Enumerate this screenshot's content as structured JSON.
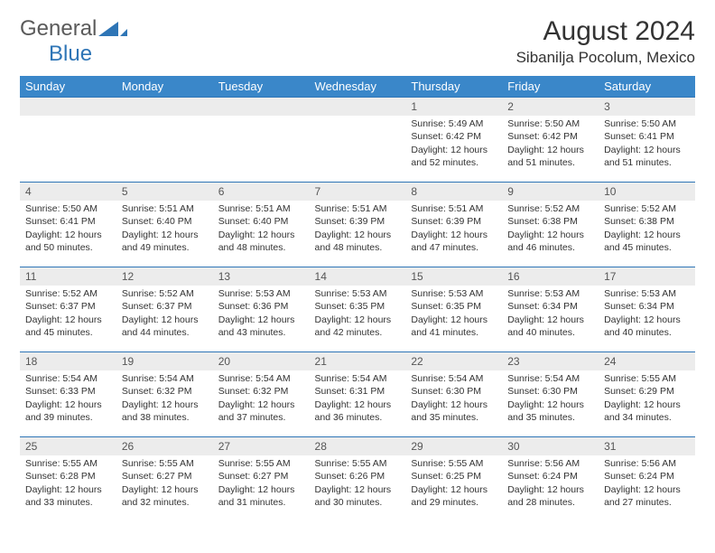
{
  "brand": {
    "part1": "General",
    "part2": "Blue"
  },
  "title": "August 2024",
  "location": "Sibanilja Pocolum, Mexico",
  "headerColor": "#3a87c9",
  "ruleColor": "#2e75b6",
  "dayHeaderBg": "#ececec",
  "weekdays": [
    "Sunday",
    "Monday",
    "Tuesday",
    "Wednesday",
    "Thursday",
    "Friday",
    "Saturday"
  ],
  "weeks": [
    [
      null,
      null,
      null,
      null,
      {
        "n": "1",
        "sr": "5:49 AM",
        "ss": "6:42 PM",
        "dl": "12 hours and 52 minutes."
      },
      {
        "n": "2",
        "sr": "5:50 AM",
        "ss": "6:42 PM",
        "dl": "12 hours and 51 minutes."
      },
      {
        "n": "3",
        "sr": "5:50 AM",
        "ss": "6:41 PM",
        "dl": "12 hours and 51 minutes."
      }
    ],
    [
      {
        "n": "4",
        "sr": "5:50 AM",
        "ss": "6:41 PM",
        "dl": "12 hours and 50 minutes."
      },
      {
        "n": "5",
        "sr": "5:51 AM",
        "ss": "6:40 PM",
        "dl": "12 hours and 49 minutes."
      },
      {
        "n": "6",
        "sr": "5:51 AM",
        "ss": "6:40 PM",
        "dl": "12 hours and 48 minutes."
      },
      {
        "n": "7",
        "sr": "5:51 AM",
        "ss": "6:39 PM",
        "dl": "12 hours and 48 minutes."
      },
      {
        "n": "8",
        "sr": "5:51 AM",
        "ss": "6:39 PM",
        "dl": "12 hours and 47 minutes."
      },
      {
        "n": "9",
        "sr": "5:52 AM",
        "ss": "6:38 PM",
        "dl": "12 hours and 46 minutes."
      },
      {
        "n": "10",
        "sr": "5:52 AM",
        "ss": "6:38 PM",
        "dl": "12 hours and 45 minutes."
      }
    ],
    [
      {
        "n": "11",
        "sr": "5:52 AM",
        "ss": "6:37 PM",
        "dl": "12 hours and 45 minutes."
      },
      {
        "n": "12",
        "sr": "5:52 AM",
        "ss": "6:37 PM",
        "dl": "12 hours and 44 minutes."
      },
      {
        "n": "13",
        "sr": "5:53 AM",
        "ss": "6:36 PM",
        "dl": "12 hours and 43 minutes."
      },
      {
        "n": "14",
        "sr": "5:53 AM",
        "ss": "6:35 PM",
        "dl": "12 hours and 42 minutes."
      },
      {
        "n": "15",
        "sr": "5:53 AM",
        "ss": "6:35 PM",
        "dl": "12 hours and 41 minutes."
      },
      {
        "n": "16",
        "sr": "5:53 AM",
        "ss": "6:34 PM",
        "dl": "12 hours and 40 minutes."
      },
      {
        "n": "17",
        "sr": "5:53 AM",
        "ss": "6:34 PM",
        "dl": "12 hours and 40 minutes."
      }
    ],
    [
      {
        "n": "18",
        "sr": "5:54 AM",
        "ss": "6:33 PM",
        "dl": "12 hours and 39 minutes."
      },
      {
        "n": "19",
        "sr": "5:54 AM",
        "ss": "6:32 PM",
        "dl": "12 hours and 38 minutes."
      },
      {
        "n": "20",
        "sr": "5:54 AM",
        "ss": "6:32 PM",
        "dl": "12 hours and 37 minutes."
      },
      {
        "n": "21",
        "sr": "5:54 AM",
        "ss": "6:31 PM",
        "dl": "12 hours and 36 minutes."
      },
      {
        "n": "22",
        "sr": "5:54 AM",
        "ss": "6:30 PM",
        "dl": "12 hours and 35 minutes."
      },
      {
        "n": "23",
        "sr": "5:54 AM",
        "ss": "6:30 PM",
        "dl": "12 hours and 35 minutes."
      },
      {
        "n": "24",
        "sr": "5:55 AM",
        "ss": "6:29 PM",
        "dl": "12 hours and 34 minutes."
      }
    ],
    [
      {
        "n": "25",
        "sr": "5:55 AM",
        "ss": "6:28 PM",
        "dl": "12 hours and 33 minutes."
      },
      {
        "n": "26",
        "sr": "5:55 AM",
        "ss": "6:27 PM",
        "dl": "12 hours and 32 minutes."
      },
      {
        "n": "27",
        "sr": "5:55 AM",
        "ss": "6:27 PM",
        "dl": "12 hours and 31 minutes."
      },
      {
        "n": "28",
        "sr": "5:55 AM",
        "ss": "6:26 PM",
        "dl": "12 hours and 30 minutes."
      },
      {
        "n": "29",
        "sr": "5:55 AM",
        "ss": "6:25 PM",
        "dl": "12 hours and 29 minutes."
      },
      {
        "n": "30",
        "sr": "5:56 AM",
        "ss": "6:24 PM",
        "dl": "12 hours and 28 minutes."
      },
      {
        "n": "31",
        "sr": "5:56 AM",
        "ss": "6:24 PM",
        "dl": "12 hours and 27 minutes."
      }
    ]
  ],
  "labels": {
    "sunrise": "Sunrise: ",
    "sunset": "Sunset: ",
    "daylight": "Daylight: "
  }
}
